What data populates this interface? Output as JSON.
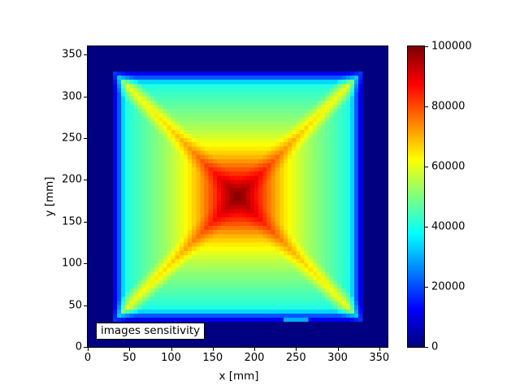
{
  "figure": {
    "background": "#ffffff",
    "spine_color": "#000000"
  },
  "chart_data": {
    "type": "heatmap",
    "title": "",
    "xlabel": "x [mm]",
    "ylabel": "y [mm]",
    "annotation": "images sensitivity",
    "x_range_mm": [
      0,
      360
    ],
    "y_range_mm": [
      0,
      360
    ],
    "x_ticks": [
      0,
      50,
      100,
      150,
      200,
      250,
      300,
      350
    ],
    "y_ticks": [
      0,
      50,
      100,
      150,
      200,
      250,
      300,
      350
    ],
    "grid": false,
    "colorbar": {
      "colormap": "jet",
      "vmin": 0,
      "vmax": 100000,
      "ticks": [
        0,
        20000,
        40000,
        60000,
        80000,
        100000
      ],
      "position": "right",
      "min_color": "#000080",
      "max_color": "#800000"
    },
    "field_model": {
      "description": "square sensitivity map: flat-topped pyramid peaking at center with bright diagonal ridges toward the corners, thin dark-blue attenuated fringe (2-3 cells) along the border of the active square, zero outside",
      "cell_mm": 5,
      "domain_mm": [
        30,
        330
      ],
      "center_mm": 180,
      "half_mm": 150,
      "peak_value": 100000,
      "base_profile": {
        "e": [
          0,
          0.1,
          0.2,
          0.3,
          0.4,
          0.5,
          0.6,
          0.7,
          0.8,
          0.9,
          1.0
        ],
        "v": [
          36000,
          40000,
          44000,
          48000,
          52000,
          57000,
          63000,
          71000,
          81000,
          91000,
          100000
        ]
      },
      "ridge_amp": 22000,
      "ridge_width": 0.13,
      "edge_factors": [
        0.3,
        0.55,
        0.85
      ],
      "bottom_anomaly": {
        "x_mm": [
          235,
          265
        ],
        "factor": 0.8
      }
    },
    "sample_grid": {
      "units": "counts",
      "x_mm": [
        30,
        60,
        90,
        120,
        150,
        180,
        210,
        240,
        270,
        300,
        330
      ],
      "y_mm": [
        30,
        60,
        90,
        120,
        150,
        180,
        210,
        240,
        270,
        300,
        330
      ],
      "values_rows_bottom_to_top": [
        [
          19000,
          12000,
          12000,
          12000,
          12000,
          12000,
          12000,
          12000,
          12000,
          12000,
          19000
        ],
        [
          12000,
          62000,
          44000,
          44000,
          44000,
          44000,
          44000,
          44000,
          44000,
          62000,
          12000
        ],
        [
          12000,
          44000,
          65000,
          52000,
          52000,
          52000,
          52000,
          52000,
          65000,
          44000,
          12000
        ],
        [
          12000,
          44000,
          52000,
          72000,
          63000,
          63000,
          63000,
          72000,
          52000,
          44000,
          12000
        ],
        [
          12000,
          44000,
          52000,
          63000,
          85000,
          81000,
          85000,
          63000,
          52000,
          44000,
          12000
        ],
        [
          12000,
          44000,
          52000,
          63000,
          81000,
          100000,
          81000,
          63000,
          52000,
          44000,
          12000
        ],
        [
          12000,
          44000,
          52000,
          63000,
          85000,
          81000,
          85000,
          63000,
          52000,
          44000,
          12000
        ],
        [
          12000,
          44000,
          52000,
          72000,
          63000,
          63000,
          63000,
          72000,
          52000,
          44000,
          12000
        ],
        [
          12000,
          44000,
          65000,
          52000,
          52000,
          52000,
          52000,
          52000,
          65000,
          44000,
          12000
        ],
        [
          12000,
          62000,
          44000,
          44000,
          44000,
          44000,
          44000,
          44000,
          44000,
          62000,
          12000
        ],
        [
          19000,
          12000,
          12000,
          12000,
          12000,
          12000,
          12000,
          12000,
          12000,
          12000,
          19000
        ]
      ]
    }
  }
}
